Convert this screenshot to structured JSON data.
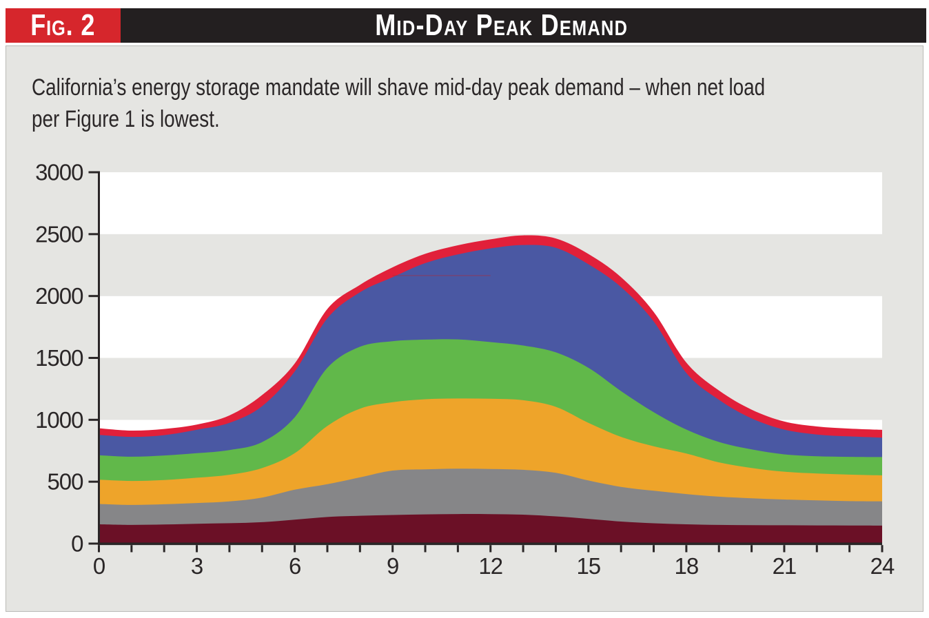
{
  "figure": {
    "tag": "Fig. 2",
    "title": "Mid-Day Peak Demand"
  },
  "caption": {
    "lines": [
      "California’s energy storage mandate will shave mid-day peak demand – when net load",
      "per Figure 1 is lowest."
    ]
  },
  "colors": {
    "header_bg": "#231f20",
    "fig_tag_bg": "#d6262c",
    "panel_bg": "#e5e5e2",
    "panel_border": "#b9b9b6",
    "axis_and_text": "#2a2627",
    "band_white": "#ffffff",
    "band_gray": "#e5e5e2"
  },
  "chart_data": {
    "type": "area",
    "stacked": true,
    "title": "Mid-Day Peak Demand",
    "xlabel": "",
    "ylabel": "",
    "xlim": [
      0,
      24
    ],
    "ylim": [
      0,
      3000
    ],
    "x": [
      0,
      1,
      2,
      3,
      4,
      5,
      6,
      7,
      8,
      9,
      10,
      11,
      12,
      13,
      14,
      15,
      16,
      17,
      18,
      19,
      20,
      21,
      22,
      23,
      24
    ],
    "x_ticks_labeled": [
      0,
      3,
      6,
      9,
      12,
      15,
      18,
      21,
      24
    ],
    "x_minor_tick_step": 1,
    "y_ticks": [
      0,
      500,
      1000,
      1500,
      2000,
      2500,
      3000
    ],
    "legend": "none",
    "grid": "alternating horizontal background bands every 500 units",
    "background_bands_bottom_to_top": [
      "#e5e5e2",
      "#ffffff",
      "#e5e5e2",
      "#ffffff",
      "#e5e5e2",
      "#ffffff"
    ],
    "series": [
      {
        "name": "layer-1-dark-maroon",
        "color": "#6b1026",
        "values": [
          156,
          151,
          154,
          160,
          165,
          173,
          193,
          215,
          225,
          231,
          236,
          239,
          238,
          234,
          220,
          200,
          178,
          164,
          156,
          151,
          149,
          148,
          147,
          146,
          145
        ]
      },
      {
        "name": "layer-2-gray",
        "color": "#868688",
        "values": [
          164,
          161,
          164,
          168,
          176,
          199,
          242,
          265,
          310,
          359,
          364,
          366,
          365,
          362,
          352,
          310,
          280,
          263,
          244,
          228,
          217,
          208,
          202,
          197,
          196
        ]
      },
      {
        "name": "layer-3-orange",
        "color": "#eea42a",
        "values": [
          196,
          194,
          196,
          204,
          215,
          238,
          295,
          470,
          555,
          552,
          566,
          567,
          567,
          562,
          533,
          465,
          404,
          359,
          328,
          277,
          245,
          225,
          217,
          214,
          210
        ]
      },
      {
        "name": "layer-4-green",
        "color": "#61b84a",
        "values": [
          198,
          196,
          198,
          198,
          200,
          210,
          290,
          470,
          500,
          493,
          482,
          478,
          458,
          442,
          440,
          445,
          370,
          276,
          193,
          165,
          150,
          140,
          140,
          144,
          148
        ]
      },
      {
        "name": "layer-5-blue",
        "color": "#4a58a3",
        "values": [
          164,
          160,
          164,
          190,
          219,
          290,
          370,
          400,
          440,
          517,
          618,
          686,
          757,
          812,
          845,
          837,
          840,
          733,
          457,
          341,
          251,
          200,
          175,
          165,
          157
        ]
      },
      {
        "name": "layer-6-red-top-band",
        "color": "#e1203a",
        "values": [
          54,
          51,
          50,
          42,
          60,
          90,
          65,
          75,
          60,
          80,
          75,
          74,
          73,
          78,
          75,
          83,
          80,
          77,
          84,
          75,
          70,
          65,
          65,
          63,
          63
        ]
      }
    ],
    "overlay_faint_line": {
      "value": 2165,
      "x_from": 9,
      "x_to": 12,
      "color": "#a62e3f",
      "opacity": 0.55
    }
  }
}
